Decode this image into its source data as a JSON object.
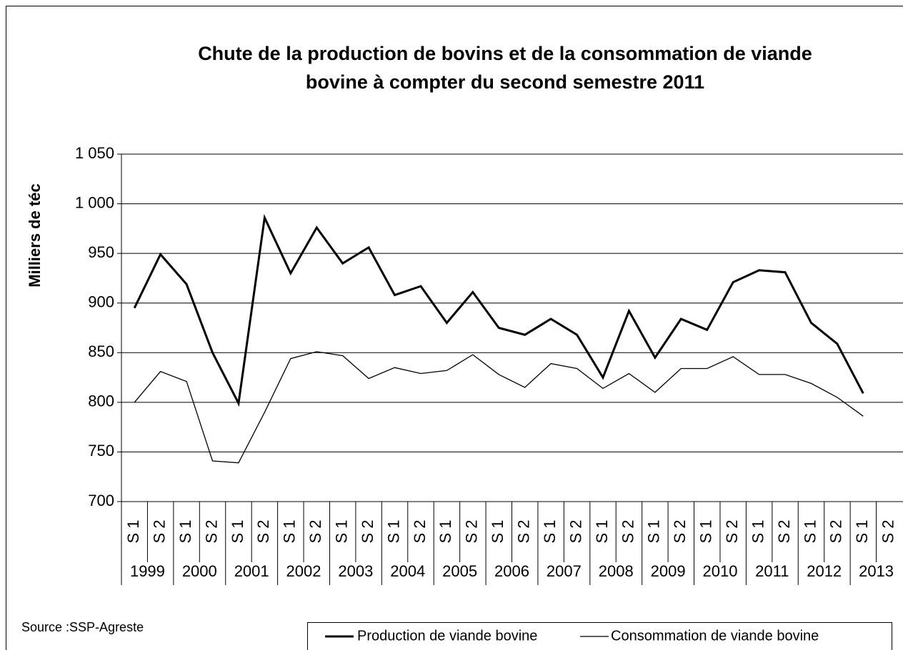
{
  "chart_data": {
    "type": "line",
    "title": "Chute de la production de bovins et de la consommation de viande bovine à compter du second semestre 2011",
    "ylabel": "Milliers de téc",
    "source": "Source :SSP-Agreste",
    "categories": [
      "S 1",
      "S 2",
      "S 1",
      "S 2",
      "S 1",
      "S 2",
      "S 1",
      "S 2",
      "S 1",
      "S 2",
      "S 1",
      "S 2",
      "S 1",
      "S 2",
      "S 1",
      "S 2",
      "S 1",
      "S 2",
      "S 1",
      "S 2",
      "S 1",
      "S 2",
      "S 1",
      "S 2",
      "S 1",
      "S 2",
      "S 1",
      "S 2",
      "S 1",
      "S 2"
    ],
    "years": [
      "1999",
      "2000",
      "2001",
      "2002",
      "2003",
      "2004",
      "2005",
      "2006",
      "2007",
      "2008",
      "2009",
      "2010",
      "2011",
      "2012",
      "2013"
    ],
    "series": [
      {
        "name": "Production de viande bovine",
        "color": "#000000",
        "width": 3,
        "values": [
          895,
          949,
          919,
          850,
          799,
          986,
          930,
          976,
          940,
          956,
          908,
          917,
          880,
          911,
          875,
          868,
          884,
          868,
          825,
          892,
          845,
          884,
          873,
          921,
          933,
          931,
          880,
          859,
          809,
          null
        ]
      },
      {
        "name": "Consommation de viande bovine",
        "color": "#000000",
        "width": 1.3,
        "values": [
          800,
          831,
          821,
          741,
          739,
          790,
          844,
          851,
          847,
          824,
          835,
          829,
          832,
          848,
          828,
          815,
          839,
          834,
          814,
          829,
          810,
          834,
          834,
          846,
          828,
          828,
          819,
          805,
          786,
          null
        ]
      }
    ],
    "ylim": [
      700,
      1050
    ],
    "yticks": [
      700,
      750,
      800,
      850,
      900,
      950,
      {
        "value": 1000,
        "label": "1 000"
      },
      {
        "value": 1050,
        "label": "1 050"
      }
    ],
    "grid": true,
    "legend": "bottom"
  }
}
